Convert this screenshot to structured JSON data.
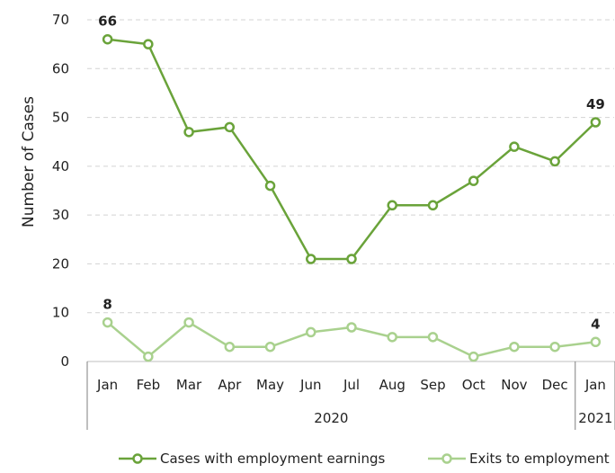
{
  "chart_data": {
    "type": "line",
    "title": "",
    "ylabel": "Number of Cases",
    "ylim": [
      0,
      70
    ],
    "yticks": [
      0,
      10,
      20,
      30,
      40,
      50,
      60,
      70
    ],
    "grid": "horizontal dashed",
    "legend_position": "bottom",
    "categories": [
      "Jan",
      "Feb",
      "Mar",
      "Apr",
      "May",
      "Jun",
      "Jul",
      "Aug",
      "Sep",
      "Oct",
      "Nov",
      "Dec",
      "Jan"
    ],
    "year_groups": [
      {
        "label": "2020",
        "start": 0,
        "end": 11
      },
      {
        "label": "2021",
        "start": 12,
        "end": 12
      }
    ],
    "series": [
      {
        "name": "Cases with employment earnings",
        "color": "#6aa33a",
        "values": [
          66,
          65,
          47,
          48,
          36,
          21,
          21,
          32,
          32,
          37,
          44,
          41,
          49
        ],
        "labeled_points": [
          0,
          12
        ]
      },
      {
        "name": "Exits to employment",
        "color": "#a9d18e",
        "values": [
          8,
          1,
          8,
          3,
          3,
          6,
          7,
          5,
          5,
          1,
          3,
          3,
          4
        ],
        "labeled_points": [
          0,
          12
        ]
      }
    ]
  }
}
